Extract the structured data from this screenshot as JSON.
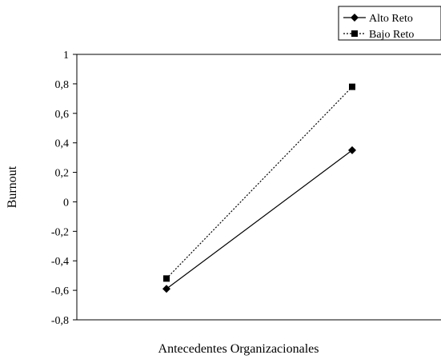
{
  "chart_data": {
    "type": "line",
    "xlabel": "Antecedentes Organizacionales",
    "ylabel": "Burnout",
    "ylim": [
      -0.8,
      1
    ],
    "yticks": [
      "1",
      "0,8",
      "0,6",
      "0,4",
      "0,2",
      "0",
      "-0,2",
      "-0,4",
      "-0,6",
      "-0,8"
    ],
    "grid": false,
    "legend_position": "top-right",
    "series": [
      {
        "name": "Alto Reto",
        "line_style": "solid",
        "marker": "diamond",
        "color": "#000000",
        "values": [
          -0.59,
          0.35
        ]
      },
      {
        "name": "Bajo Reto",
        "line_style": "dotted",
        "marker": "square",
        "color": "#000000",
        "values": [
          -0.52,
          0.78
        ]
      }
    ]
  }
}
